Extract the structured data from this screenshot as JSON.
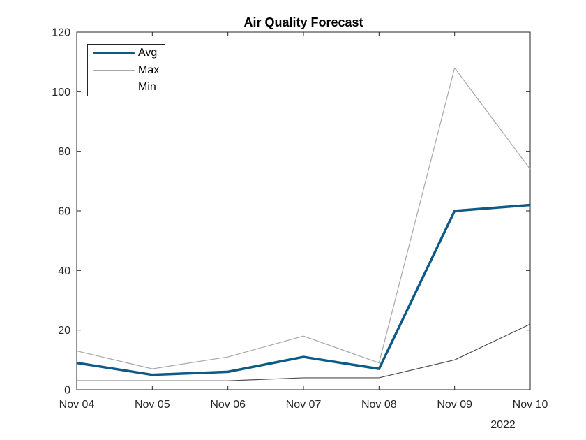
{
  "figure": {
    "background": "#ffffff",
    "axis_color": "#262626",
    "tick_label_color": "#262626"
  },
  "chart_data": {
    "type": "line",
    "title": "Air Quality Forecast",
    "categories": [
      "Nov 04",
      "Nov 05",
      "Nov 06",
      "Nov 07",
      "Nov 08",
      "Nov 09",
      "Nov 10"
    ],
    "x_secondary_label": "2022",
    "series": [
      {
        "name": "Avg",
        "values": [
          9,
          5,
          6,
          11,
          7,
          60,
          62
        ],
        "color": "#0d5a87",
        "width": 3.5
      },
      {
        "name": "Max",
        "values": [
          13,
          7,
          11,
          18,
          9,
          108,
          74
        ],
        "color": "#a8a8a8",
        "width": 1.2
      },
      {
        "name": "Min",
        "values": [
          3,
          3,
          3,
          4,
          4,
          10,
          22
        ],
        "color": "#4d4d4d",
        "width": 1.2
      }
    ],
    "xlabel": "",
    "ylabel": "",
    "ylim": [
      0,
      120
    ],
    "yticks": [
      0,
      20,
      40,
      60,
      80,
      100,
      120
    ],
    "grid": false,
    "legend_position": "top-left"
  }
}
